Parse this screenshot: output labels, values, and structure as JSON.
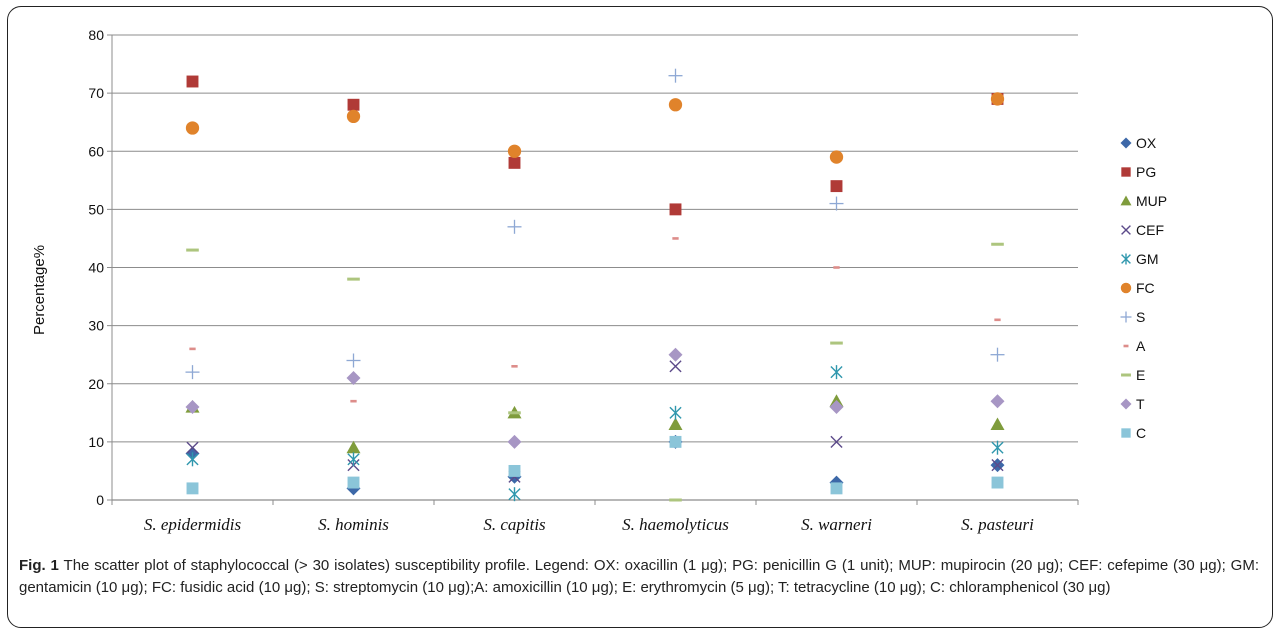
{
  "chart_data": {
    "type": "scatter",
    "title": "",
    "xlabel": "",
    "ylabel": "Percentage%",
    "ylim": [
      0,
      80
    ],
    "yticks": [
      "0",
      "10",
      "20",
      "30",
      "40",
      "50",
      "60",
      "70",
      "80"
    ],
    "categories": [
      "S. epidermidis",
      "S. hominis",
      "S. capitis",
      "S. haemolyticus",
      "S. warneri",
      "S. pasteuri"
    ],
    "grid": "horizontal",
    "legend_position": "right",
    "series": [
      {
        "name": "OX",
        "marker": "diamond",
        "color": "#3d68a8",
        "values": [
          8,
          2,
          4,
          10,
          3,
          6
        ]
      },
      {
        "name": "PG",
        "marker": "square",
        "color": "#b03a37",
        "values": [
          72,
          68,
          58,
          50,
          54,
          69
        ]
      },
      {
        "name": "MUP",
        "marker": "triangle",
        "color": "#7f9c3c",
        "values": [
          16,
          9,
          15,
          13,
          17,
          13
        ]
      },
      {
        "name": "CEF",
        "marker": "x",
        "color": "#5c4a8a",
        "values": [
          9,
          6,
          4,
          23,
          10,
          6
        ]
      },
      {
        "name": "GM",
        "marker": "asterisk",
        "color": "#2f97ad",
        "values": [
          7,
          7,
          1,
          15,
          22,
          9
        ]
      },
      {
        "name": "FC",
        "marker": "circle",
        "color": "#e0832b",
        "values": [
          64,
          66,
          60,
          68,
          59,
          69
        ]
      },
      {
        "name": "S",
        "marker": "plus",
        "color": "#8ea8d4",
        "values": [
          22,
          24,
          47,
          73,
          51,
          25
        ]
      },
      {
        "name": "A",
        "marker": "dash",
        "color": "#dd8d8a",
        "values": [
          26,
          17,
          23,
          45,
          40,
          31
        ]
      },
      {
        "name": "E",
        "marker": "dash-long",
        "color": "#adc57e",
        "values": [
          43,
          38,
          15,
          0,
          27,
          44
        ]
      },
      {
        "name": "T",
        "marker": "diamond",
        "color": "#a796c4",
        "values": [
          16,
          21,
          10,
          25,
          16,
          17
        ]
      },
      {
        "name": "C",
        "marker": "square",
        "color": "#8bc5d9",
        "values": [
          2,
          3,
          5,
          10,
          2,
          3
        ]
      }
    ]
  },
  "caption": {
    "label": "Fig. 1",
    "text": " The scatter plot of staphylococcal (> 30 isolates) susceptibility profile. Legend: OX: oxacillin (1 μg); PG: penicillin G (1 unit); MUP: mupirocin (20 μg); CEF: cefepime (30 μg); GM: gentamicin (10 μg); FC: fusidic acid (10 μg); S: streptomycin (10 μg);A: amoxicillin (10 μg); E: erythromycin (5 μg); T: tetracycline (10 μg); C: chloramphenicol (30 μg)"
  }
}
